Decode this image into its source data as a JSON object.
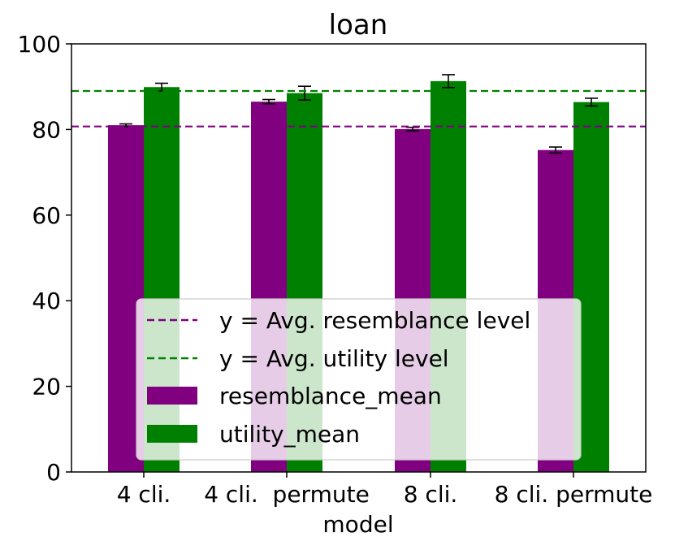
{
  "chart_data": {
    "type": "bar",
    "title": "loan",
    "xlabel": "model",
    "ylabel": "",
    "ylim": [
      0,
      100
    ],
    "yticks": [
      0,
      20,
      40,
      60,
      80,
      100
    ],
    "grid": false,
    "legend_position": "lower center",
    "categories": [
      "4 cli.",
      "4 cli.  permute",
      "8 cli.",
      "8 cli. permute"
    ],
    "series": [
      {
        "name": "resemblance_mean",
        "color": "#800080",
        "values": [
          81.0,
          86.5,
          80.1,
          75.2
        ],
        "errors": [
          0.3,
          0.5,
          0.4,
          0.7
        ]
      },
      {
        "name": "utility_mean",
        "color": "#008000",
        "values": [
          89.9,
          88.5,
          91.3,
          86.4
        ],
        "errors": [
          0.9,
          1.6,
          1.5,
          0.9
        ]
      }
    ],
    "reference_lines": [
      {
        "label": "y = Avg. resemblance level",
        "value": 80.7,
        "color": "#800080",
        "style": "dashed"
      },
      {
        "label": "y = Avg. utility level",
        "value": 89.0,
        "color": "#008000",
        "style": "dashed"
      }
    ]
  }
}
